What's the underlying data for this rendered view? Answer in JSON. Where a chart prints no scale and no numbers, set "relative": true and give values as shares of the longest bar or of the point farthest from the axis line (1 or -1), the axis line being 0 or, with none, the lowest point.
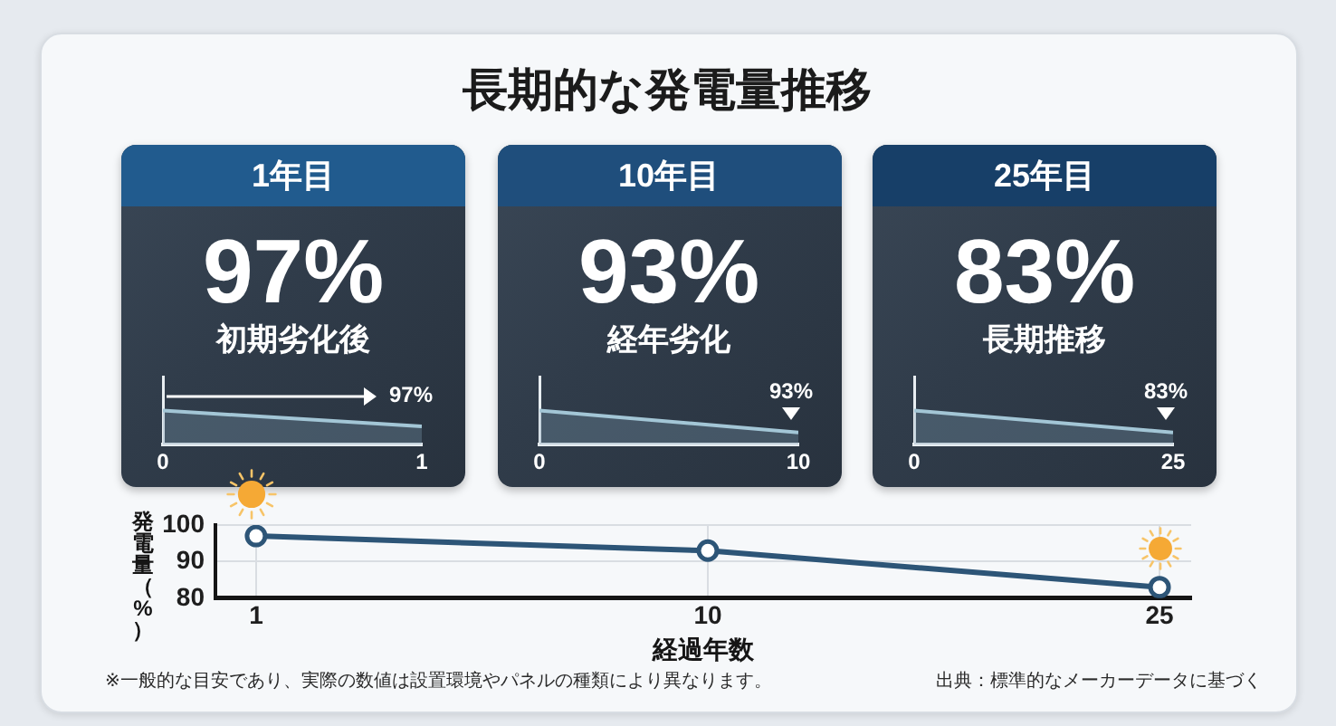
{
  "chart_data": [
    {
      "type": "other",
      "title": "長期的な発電量推移"
    },
    {
      "type": "area",
      "title": "1年目",
      "subtitle": "初期劣化後",
      "annotations": [
        "97%",
        {
          "text": "97%",
          "x": 1,
          "y": 0.54
        }
      ],
      "x": [
        0,
        1
      ],
      "values": [
        1,
        0.54
      ],
      "color": "#a3c6d6",
      "relative": true,
      "xlim": [
        0,
        1
      ],
      "xticks": [
        0,
        1
      ]
    },
    {
      "type": "area",
      "title": "10年目",
      "subtitle": "経年劣化",
      "annotations": [
        "93%",
        {
          "text": "93%",
          "x": 10,
          "y": 0.36
        }
      ],
      "x": [
        0,
        10
      ],
      "values": [
        1,
        0.36
      ],
      "color": "#a3c6d6",
      "relative": true,
      "xlim": [
        0,
        10
      ],
      "xticks": [
        0,
        10
      ]
    },
    {
      "type": "area",
      "title": "25年目",
      "subtitle": "長期推移",
      "annotations": [
        "83%",
        {
          "text": "83%",
          "x": 25,
          "y": 0.36
        }
      ],
      "x": [
        0,
        25
      ],
      "values": [
        1,
        0.36
      ],
      "color": "#a3c6d6",
      "relative": true,
      "xlim": [
        0,
        25
      ],
      "xticks": [
        0,
        25
      ]
    },
    {
      "type": "line",
      "xlabel": "経過年数",
      "ylabel": "発電量（%）",
      "categories": [
        "1",
        "10",
        "25"
      ],
      "values": [
        97,
        93,
        83
      ],
      "color": "#2d5577",
      "ylim": [
        80,
        100
      ],
      "yticks": [
        80,
        90,
        100
      ],
      "grid": true,
      "marker": "circle",
      "annotations": [
        "※一般的な目安であり、実際の数値は設置環境やパネルの種類により異なります。",
        "出典：標準的なメーカーデータに基づく"
      ]
    }
  ]
}
